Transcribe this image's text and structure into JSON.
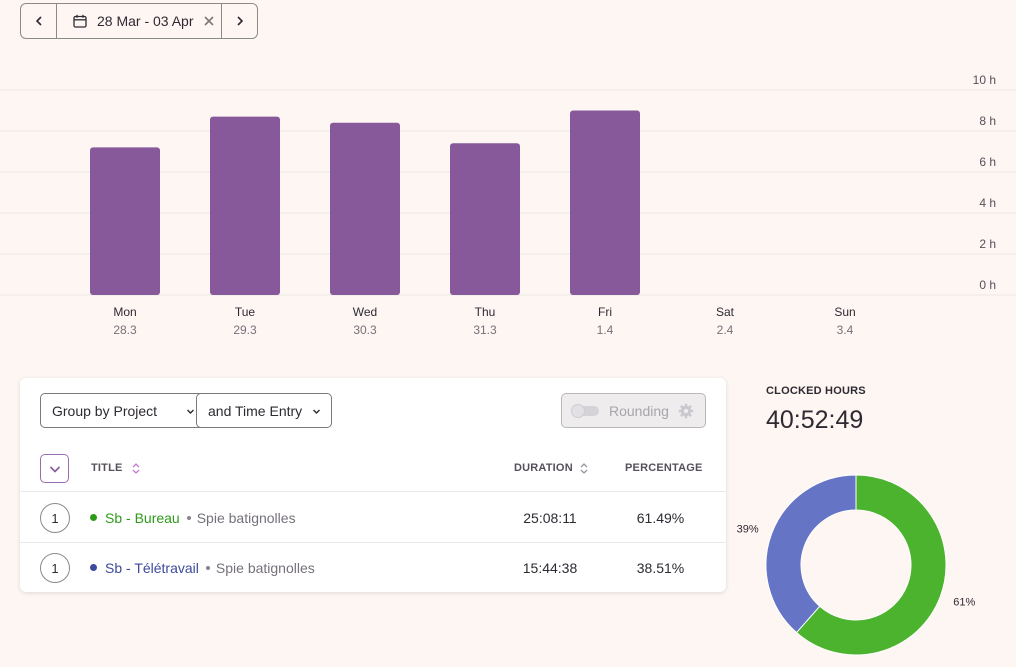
{
  "date_range": {
    "label": "28 Mar - 03 Apr",
    "prev_icon": "chevron-left-icon",
    "next_icon": "chevron-right-icon",
    "calendar_icon": "calendar-icon",
    "clear_icon": "close-icon"
  },
  "chart_data": {
    "type": "bar",
    "categories": [
      "Mon",
      "Tue",
      "Wed",
      "Thu",
      "Fri",
      "Sat",
      "Sun"
    ],
    "dates": [
      "28.3",
      "29.3",
      "30.3",
      "31.3",
      "1.4",
      "2.4",
      "3.4"
    ],
    "values": [
      7.2,
      8.7,
      8.4,
      7.4,
      9.0,
      0,
      0
    ],
    "y_ticks": [
      "0 h",
      "2 h",
      "4 h",
      "6 h",
      "8 h",
      "10 h"
    ],
    "ylim": [
      0,
      10
    ],
    "bar_color": "#87599a",
    "grid": true
  },
  "controls": {
    "group_by_label": "Group by Project",
    "then_by_label": "and Time Entry",
    "rounding_label": "Rounding",
    "rounding_enabled": false
  },
  "table": {
    "headers": {
      "title": "TITLE",
      "duration": "DURATION",
      "percentage": "PERCENTAGE"
    },
    "rows": [
      {
        "count": "1",
        "project": "Sb - Bureau",
        "client": "Spie batignolles",
        "duration": "25:08:11",
        "percentage": "61.49%",
        "color": "#2f9a1a"
      },
      {
        "count": "1",
        "project": "Sb - Télétravail",
        "client": "Spie batignolles",
        "duration": "15:44:38",
        "percentage": "38.51%",
        "color": "#3d4a9c"
      }
    ]
  },
  "summary": {
    "clocked_title": "CLOCKED HOURS",
    "clocked_value": "40:52:49"
  },
  "donut": {
    "slices": [
      {
        "label": "61%",
        "value": 61.49,
        "color": "#4cb32e"
      },
      {
        "label": "39%",
        "value": 38.51,
        "color": "#6574c4"
      }
    ]
  }
}
